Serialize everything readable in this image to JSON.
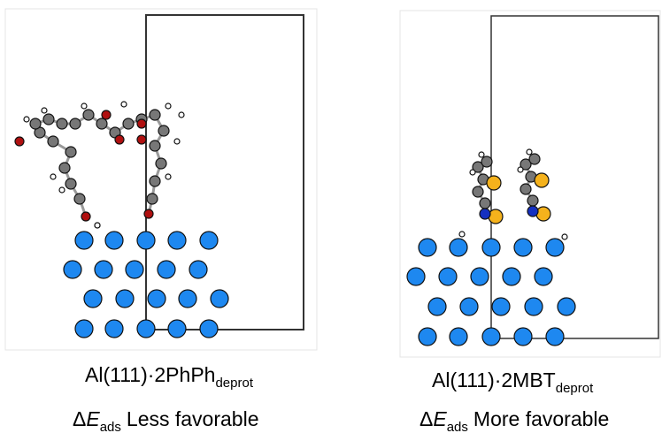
{
  "left": {
    "structure": "Al(111)·2PhPh",
    "structure_sub": "deprot",
    "energy_delta": "Δ",
    "energy_symbol": "E",
    "energy_sub": "ads",
    "energy_text": "Less favorable"
  },
  "right": {
    "structure": "Al(111)·2MBT",
    "structure_sub": "deprot",
    "energy_delta": "Δ",
    "energy_symbol": "E",
    "energy_sub": "ads",
    "energy_text": "More favorable"
  }
}
